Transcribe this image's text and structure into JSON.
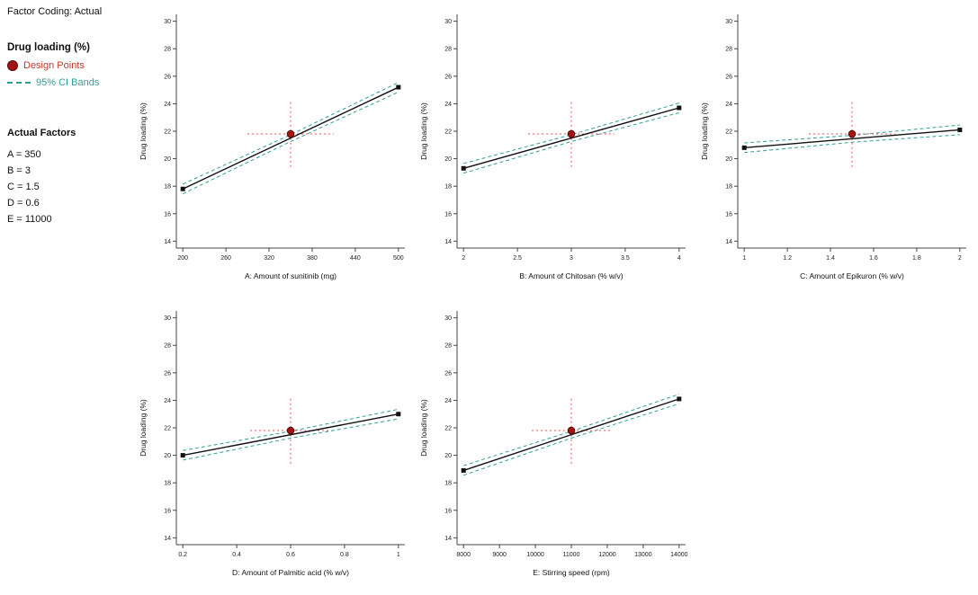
{
  "header": {
    "factor_coding": "Factor Coding: Actual"
  },
  "legend": {
    "response": "Drug loading (%)",
    "design_points": "Design Points",
    "ci_bands": "95% CI Bands"
  },
  "actual_factors": {
    "title": "Actual Factors",
    "items": [
      {
        "label": "A = 350"
      },
      {
        "label": "B = 3"
      },
      {
        "label": "C = 1.5"
      },
      {
        "label": "D = 0.6"
      },
      {
        "label": "E = 11000"
      }
    ]
  },
  "colors": {
    "design_point_fill": "#a31212",
    "design_point_edge": "#5a0a0a",
    "design_point_text": "#c0392b",
    "ci_band": "#2fa098",
    "crosshair": "#e85050",
    "line": "#111111",
    "axis": "#444444"
  },
  "chart_data": [
    {
      "id": "A",
      "type": "line",
      "xlabel": "A: Amount of sunitinib (mg)",
      "ylabel": "Drug loading (%)",
      "xlim": [
        200,
        500
      ],
      "xticks": [
        200,
        260,
        320,
        380,
        440,
        500
      ],
      "xtick_labels": [
        "200",
        "260",
        "320",
        "380",
        "440",
        "500"
      ],
      "ylim": [
        13.5,
        30.5
      ],
      "yticks": [
        14,
        16,
        18,
        20,
        22,
        24,
        26,
        28,
        30
      ],
      "line_x": [
        200,
        500
      ],
      "line_y": [
        17.8,
        25.2
      ],
      "ci_x": [
        200,
        350,
        500
      ],
      "ci_upper": [
        18.15,
        21.75,
        25.55
      ],
      "ci_lower": [
        17.45,
        21.25,
        24.85
      ],
      "design_point": {
        "x": 350,
        "y": 21.8
      },
      "crosshair": {
        "x_span": [
          290,
          410
        ],
        "y_span": [
          19.4,
          24.2
        ]
      }
    },
    {
      "id": "B",
      "type": "line",
      "xlabel": "B: Amount of Chitosan (% w/v)",
      "ylabel": "Drug loading (%)",
      "xlim": [
        2,
        4
      ],
      "xticks": [
        2,
        2.5,
        3,
        3.5,
        4
      ],
      "xtick_labels": [
        "2",
        "2.5",
        "3",
        "3.5",
        "4"
      ],
      "ylim": [
        13.5,
        30.5
      ],
      "yticks": [
        14,
        16,
        18,
        20,
        22,
        24,
        26,
        28,
        30
      ],
      "line_x": [
        2,
        4
      ],
      "line_y": [
        19.3,
        23.7
      ],
      "ci_x": [
        2,
        3,
        4
      ],
      "ci_upper": [
        19.65,
        21.75,
        24.05
      ],
      "ci_lower": [
        18.95,
        21.25,
        23.35
      ],
      "design_point": {
        "x": 3,
        "y": 21.8
      },
      "crosshair": {
        "x_span": [
          2.6,
          3.4
        ],
        "y_span": [
          19.4,
          24.2
        ]
      }
    },
    {
      "id": "C",
      "type": "line",
      "xlabel": "C: Amount of Epikuron (% w/v)",
      "ylabel": "Drug loading (%)",
      "xlim": [
        1,
        2
      ],
      "xticks": [
        1,
        1.2,
        1.4,
        1.6,
        1.8,
        2
      ],
      "xtick_labels": [
        "1",
        "1.2",
        "1.4",
        "1.6",
        "1.8",
        "2"
      ],
      "ylim": [
        13.5,
        30.5
      ],
      "yticks": [
        14,
        16,
        18,
        20,
        22,
        24,
        26,
        28,
        30
      ],
      "line_x": [
        1,
        2
      ],
      "line_y": [
        20.8,
        22.1
      ],
      "ci_x": [
        1,
        1.5,
        2
      ],
      "ci_upper": [
        21.15,
        21.7,
        22.45
      ],
      "ci_lower": [
        20.45,
        21.2,
        21.75
      ],
      "design_point": {
        "x": 1.5,
        "y": 21.8
      },
      "crosshair": {
        "x_span": [
          1.3,
          1.7
        ],
        "y_span": [
          19.4,
          24.2
        ]
      }
    },
    {
      "id": "D",
      "type": "line",
      "xlabel": "D: Amount of Palmitic acid (% w/v)",
      "ylabel": "Drug loading (%)",
      "xlim": [
        0.2,
        1
      ],
      "xticks": [
        0.2,
        0.4,
        0.6,
        0.8,
        1
      ],
      "xtick_labels": [
        "0.2",
        "0.4",
        "0.6",
        "0.8",
        "1"
      ],
      "ylim": [
        13.5,
        30.5
      ],
      "yticks": [
        14,
        16,
        18,
        20,
        22,
        24,
        26,
        28,
        30
      ],
      "line_x": [
        0.2,
        1
      ],
      "line_y": [
        20.0,
        23.0
      ],
      "ci_x": [
        0.2,
        0.6,
        1
      ],
      "ci_upper": [
        20.35,
        21.75,
        23.35
      ],
      "ci_lower": [
        19.65,
        21.25,
        22.65
      ],
      "design_point": {
        "x": 0.6,
        "y": 21.8
      },
      "crosshair": {
        "x_span": [
          0.45,
          0.75
        ],
        "y_span": [
          19.4,
          24.2
        ]
      }
    },
    {
      "id": "E",
      "type": "line",
      "xlabel": "E: Stirring speed (rpm)",
      "ylabel": "Drug loading (%)",
      "xlim": [
        8000,
        14000
      ],
      "xticks": [
        8000,
        9000,
        10000,
        11000,
        12000,
        13000,
        14000
      ],
      "xtick_labels": [
        "8000",
        "9000",
        "10000",
        "11000",
        "12000",
        "13000",
        "14000"
      ],
      "ylim": [
        13.5,
        30.5
      ],
      "yticks": [
        14,
        16,
        18,
        20,
        22,
        24,
        26,
        28,
        30
      ],
      "line_x": [
        8000,
        14000
      ],
      "line_y": [
        18.9,
        24.1
      ],
      "ci_x": [
        8000,
        11000,
        14000
      ],
      "ci_upper": [
        19.25,
        21.75,
        24.45
      ],
      "ci_lower": [
        18.55,
        21.25,
        23.75
      ],
      "design_point": {
        "x": 11000,
        "y": 21.8
      },
      "crosshair": {
        "x_span": [
          9900,
          12100
        ],
        "y_span": [
          19.4,
          24.2
        ]
      }
    }
  ]
}
